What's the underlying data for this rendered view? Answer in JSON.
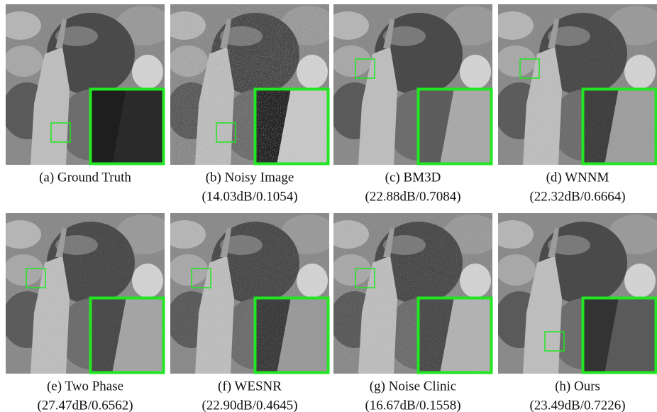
{
  "panels": [
    {
      "label": "(a) Ground Truth"
    },
    {
      "label": "(b) Noisy Image",
      "metrics": "(14.03dB/0.1054)"
    },
    {
      "label": "(c) BM3D",
      "metrics": "(22.88dB/0.7084)"
    },
    {
      "label": "(d) WNNM",
      "metrics": "(22.32dB/0.6664)"
    },
    {
      "label": "(e) Two Phase",
      "metrics": "(27.47dB/0.6562)"
    },
    {
      "label": "(f) WESNR",
      "metrics": "(22.90dB/0.4645)"
    },
    {
      "label": "(g) Noise Clinic",
      "metrics": "(16.67dB/0.1558)"
    },
    {
      "label": "(h) Ours",
      "metrics": "(23.49dB/0.7226)"
    }
  ]
}
